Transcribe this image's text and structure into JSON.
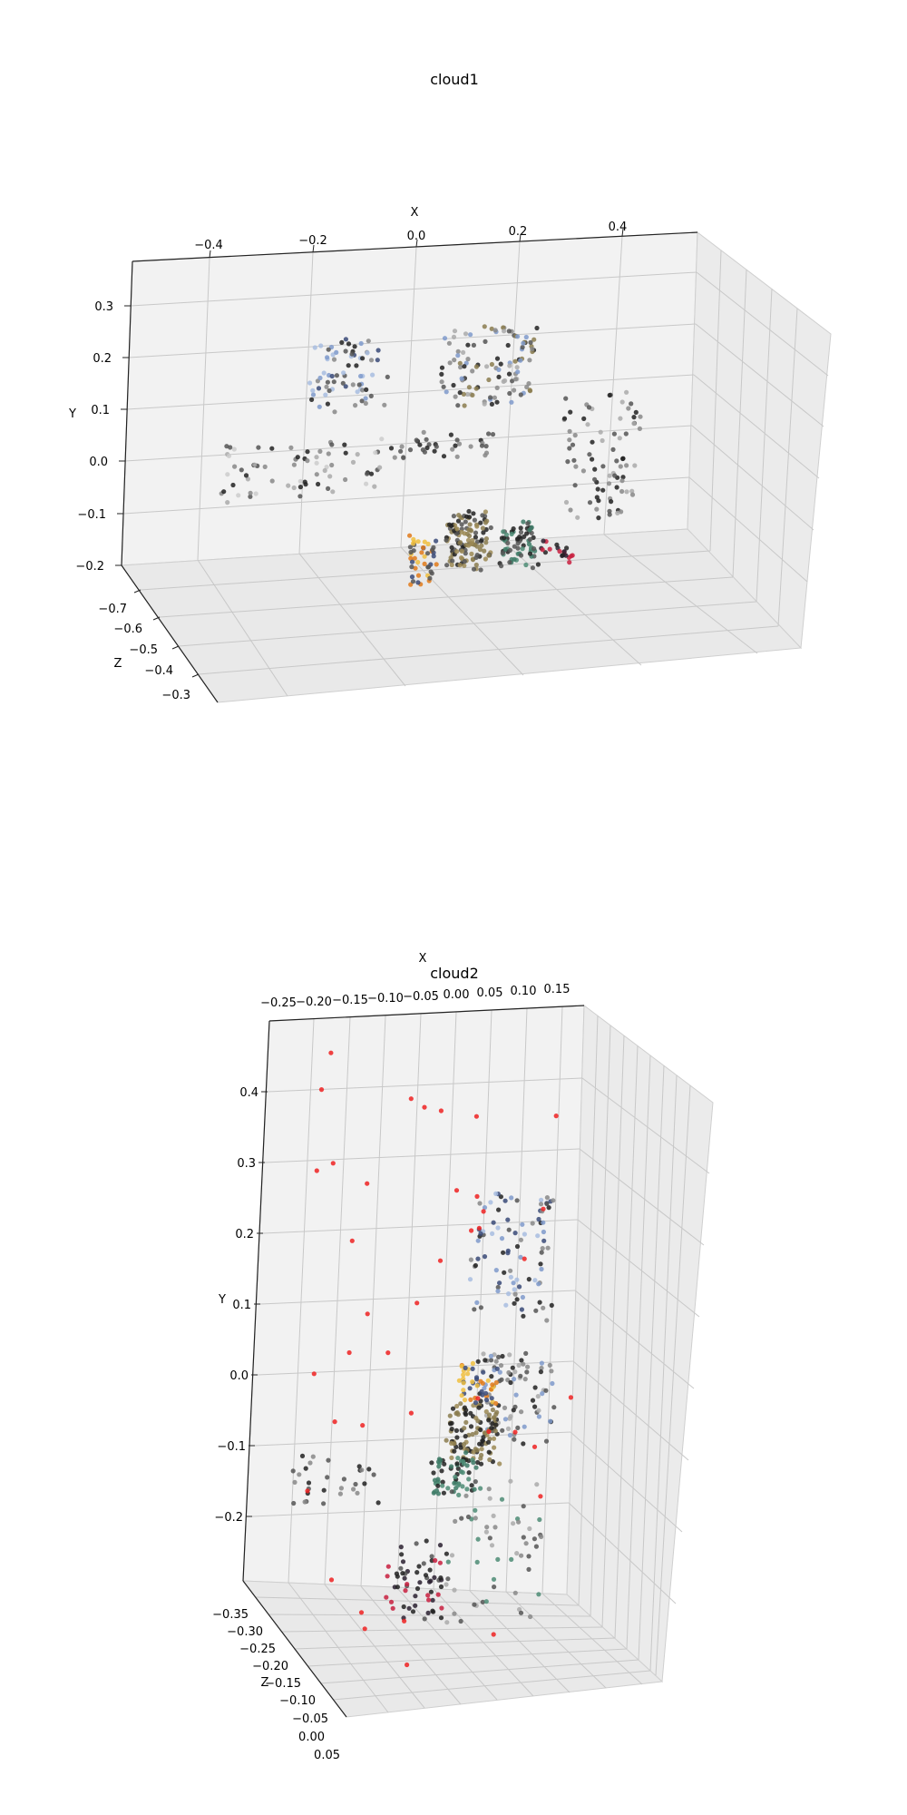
{
  "chart_data": [
    {
      "type": "scatter",
      "title": "cloud1",
      "xlabel": "X",
      "ylabel": "Y",
      "zlabel": "Z",
      "x_ticks": [
        "−0.4",
        "−0.2",
        "0.0",
        "0.2",
        "0.4"
      ],
      "y_ticks": [
        "0.3",
        "0.2",
        "0.1",
        "0.0",
        "−0.1",
        "−0.2"
      ],
      "z_ticks": [
        "−0.7",
        "−0.6",
        "−0.5",
        "−0.4",
        "−0.3"
      ],
      "xlim": [
        -0.5,
        0.55
      ],
      "ylim": [
        -0.2,
        0.35
      ],
      "zlim": [
        -0.75,
        -0.25
      ],
      "grid": true,
      "point_colors": [
        "#222222",
        "#555555",
        "#888888",
        "#aaaaaa",
        "#cccccc",
        "#3a4a78",
        "#7f9acb",
        "#a8bde0",
        "#8b7d4f",
        "#9c8a55",
        "#3d7a66",
        "#4e8c76",
        "#e07a1a",
        "#f0c040",
        "#c82040",
        "#2a2030"
      ],
      "clusters": [
        {
          "name": "upper-left-cluster",
          "x": [
            -0.2,
            -0.05
          ],
          "y": [
            0.1,
            0.23
          ],
          "z": [
            -0.55,
            -0.45
          ],
          "n": 70,
          "colors": [
            0,
            1,
            2,
            5,
            6,
            7
          ]
        },
        {
          "name": "upper-center-cluster",
          "x": [
            0.05,
            0.22
          ],
          "y": [
            0.1,
            0.24
          ],
          "z": [
            -0.55,
            -0.45
          ],
          "n": 110,
          "colors": [
            0,
            1,
            2,
            3,
            8,
            6
          ]
        },
        {
          "name": "left-band",
          "x": [
            -0.35,
            -0.05
          ],
          "y": [
            -0.05,
            0.05
          ],
          "z": [
            -0.55,
            -0.45
          ],
          "n": 70,
          "colors": [
            0,
            1,
            2,
            3,
            4
          ]
        },
        {
          "name": "center-band",
          "x": [
            -0.05,
            0.15
          ],
          "y": [
            0.0,
            0.05
          ],
          "z": [
            -0.55,
            -0.45
          ],
          "n": 35,
          "colors": [
            0,
            1,
            2
          ]
        },
        {
          "name": "right-column",
          "x": [
            0.28,
            0.42
          ],
          "y": [
            -0.12,
            0.1
          ],
          "z": [
            -0.55,
            -0.45
          ],
          "n": 80,
          "colors": [
            0,
            1,
            2,
            3
          ]
        },
        {
          "name": "bottom-tan-object",
          "x": [
            0.07,
            0.15
          ],
          "y": [
            -0.2,
            -0.1
          ],
          "z": [
            -0.55,
            -0.45
          ],
          "n": 120,
          "colors": [
            8,
            9,
            0,
            1
          ]
        },
        {
          "name": "bottom-green-object",
          "x": [
            0.17,
            0.24
          ],
          "y": [
            -0.2,
            -0.13
          ],
          "z": [
            -0.55,
            -0.45
          ],
          "n": 70,
          "colors": [
            10,
            11,
            0,
            1
          ]
        },
        {
          "name": "bottom-yellow-object",
          "x": [
            0.0,
            0.05
          ],
          "y": [
            -0.22,
            -0.14
          ],
          "z": [
            -0.55,
            -0.45
          ],
          "n": 45,
          "colors": [
            12,
            13,
            5,
            1
          ]
        },
        {
          "name": "bottom-red-object",
          "x": [
            0.24,
            0.3
          ],
          "y": [
            -0.2,
            -0.16
          ],
          "z": [
            -0.55,
            -0.45
          ],
          "n": 20,
          "colors": [
            14,
            15,
            0
          ]
        }
      ]
    },
    {
      "type": "scatter",
      "title": "cloud2",
      "xlabel": "X",
      "ylabel": "Y",
      "zlabel": "Z",
      "x_ticks": [
        "−0.25",
        "−0.20",
        "−0.15",
        "−0.10",
        "−0.05",
        "0.00",
        "0.05",
        "0.10",
        "0.15"
      ],
      "y_ticks": [
        "0.4",
        "0.3",
        "0.2",
        "0.1",
        "0.0",
        "−0.1",
        "−0.2"
      ],
      "z_ticks": [
        "−0.35",
        "−0.30",
        "−0.25",
        "−0.20",
        "−0.15",
        "−0.10",
        "−0.05",
        "0.00",
        "0.05"
      ],
      "xlim": [
        -0.28,
        0.2
      ],
      "ylim": [
        -0.3,
        0.48
      ],
      "zlim": [
        -0.38,
        0.07
      ],
      "grid": true,
      "point_colors": [
        "#222222",
        "#555555",
        "#888888",
        "#aaaaaa",
        "#cccccc",
        "#3a4a78",
        "#7f9acb",
        "#a8bde0",
        "#8b7d4f",
        "#9c8a55",
        "#3d7a66",
        "#4e8c76",
        "#e07a1a",
        "#f0c040",
        "#c82040",
        "#2a2030",
        "#ee2222"
      ],
      "clusters": [
        {
          "name": "upper-cluster",
          "x": [
            0.0,
            0.12
          ],
          "y": [
            0.12,
            0.3
          ],
          "z": [
            -0.15,
            -0.05
          ],
          "n": 90,
          "colors": [
            0,
            1,
            2,
            5,
            6,
            7
          ]
        },
        {
          "name": "middle-cluster",
          "x": [
            0.02,
            0.13
          ],
          "y": [
            -0.05,
            0.07
          ],
          "z": [
            -0.15,
            -0.05
          ],
          "n": 90,
          "colors": [
            0,
            1,
            2,
            3,
            6
          ]
        },
        {
          "name": "tan-object",
          "x": [
            -0.02,
            0.05
          ],
          "y": [
            -0.08,
            0.0
          ],
          "z": [
            -0.15,
            -0.05
          ],
          "n": 110,
          "colors": [
            8,
            9,
            0
          ]
        },
        {
          "name": "yellow-object",
          "x": [
            -0.01,
            0.05
          ],
          "y": [
            0.0,
            0.05
          ],
          "z": [
            -0.15,
            -0.05
          ],
          "n": 45,
          "colors": [
            12,
            13,
            5
          ]
        },
        {
          "name": "green-object",
          "x": [
            -0.04,
            0.02
          ],
          "y": [
            -0.13,
            -0.07
          ],
          "z": [
            -0.15,
            -0.05
          ],
          "n": 60,
          "colors": [
            10,
            11,
            0
          ]
        },
        {
          "name": "dark-lower-cluster",
          "x": [
            -0.1,
            -0.02
          ],
          "y": [
            -0.3,
            -0.2
          ],
          "z": [
            -0.15,
            -0.05
          ],
          "n": 60,
          "colors": [
            0,
            15,
            14,
            1
          ]
        },
        {
          "name": "left-arm",
          "x": [
            -0.25,
            -0.12
          ],
          "y": [
            -0.15,
            -0.08
          ],
          "z": [
            -0.15,
            -0.05
          ],
          "n": 30,
          "colors": [
            0,
            1,
            2
          ]
        },
        {
          "name": "lower-scatter",
          "x": [
            -0.02,
            0.13
          ],
          "y": [
            -0.3,
            -0.1
          ],
          "z": [
            -0.15,
            -0.05
          ],
          "n": 60,
          "colors": [
            1,
            2,
            3,
            11
          ]
        },
        {
          "name": "red-outliers",
          "x": [
            -0.25,
            0.16
          ],
          "y": [
            -0.35,
            0.45
          ],
          "z": [
            -0.35,
            0.05
          ],
          "n": 40,
          "colors": [
            16
          ]
        }
      ]
    }
  ]
}
